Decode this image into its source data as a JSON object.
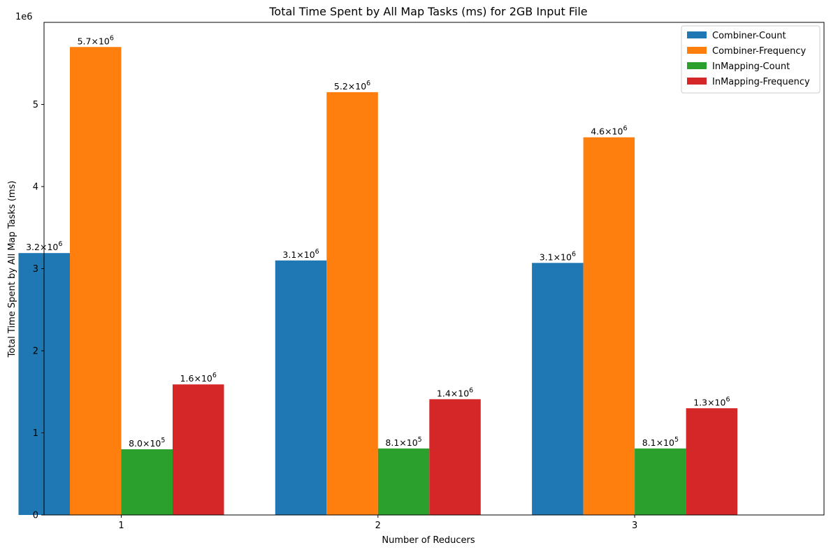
{
  "chart_data": {
    "type": "bar",
    "title": "Total Time Spent by All Map Tasks (ms) for 2GB Input File",
    "xlabel": "Number of Reducers",
    "ylabel": "Total Time Spent by All Map Tasks (ms)",
    "offset_text": "1e6",
    "categories": [
      "1",
      "2",
      "3"
    ],
    "ylim": [
      0,
      6000000
    ],
    "yticks": [
      0,
      1000000,
      2000000,
      3000000,
      4000000,
      5000000
    ],
    "ytick_labels": [
      "0",
      "1",
      "2",
      "3",
      "4",
      "5"
    ],
    "legend_position": "top-right",
    "grid": false,
    "series": [
      {
        "name": "Combiner-Count",
        "color": "#1f77b4",
        "values": [
          3190000,
          3100000,
          3070000
        ],
        "labels": [
          {
            "mantissa": "3.2",
            "exponent": "6"
          },
          {
            "mantissa": "3.1",
            "exponent": "6"
          },
          {
            "mantissa": "3.1",
            "exponent": "6"
          }
        ]
      },
      {
        "name": "Combiner-Frequency",
        "color": "#ff7f0e",
        "values": [
          5700000,
          5150000,
          4600000
        ],
        "labels": [
          {
            "mantissa": "5.7",
            "exponent": "6"
          },
          {
            "mantissa": "5.2",
            "exponent": "6"
          },
          {
            "mantissa": "4.6",
            "exponent": "6"
          }
        ]
      },
      {
        "name": "InMapping-Count",
        "color": "#2ca02c",
        "values": [
          800000,
          810000,
          810000
        ],
        "labels": [
          {
            "mantissa": "8.0",
            "exponent": "5"
          },
          {
            "mantissa": "8.1",
            "exponent": "5"
          },
          {
            "mantissa": "8.1",
            "exponent": "5"
          }
        ]
      },
      {
        "name": "InMapping-Frequency",
        "color": "#d62728",
        "values": [
          1590000,
          1410000,
          1300000
        ],
        "labels": [
          {
            "mantissa": "1.6",
            "exponent": "6"
          },
          {
            "mantissa": "1.4",
            "exponent": "6"
          },
          {
            "mantissa": "1.3",
            "exponent": "6"
          }
        ]
      }
    ]
  }
}
